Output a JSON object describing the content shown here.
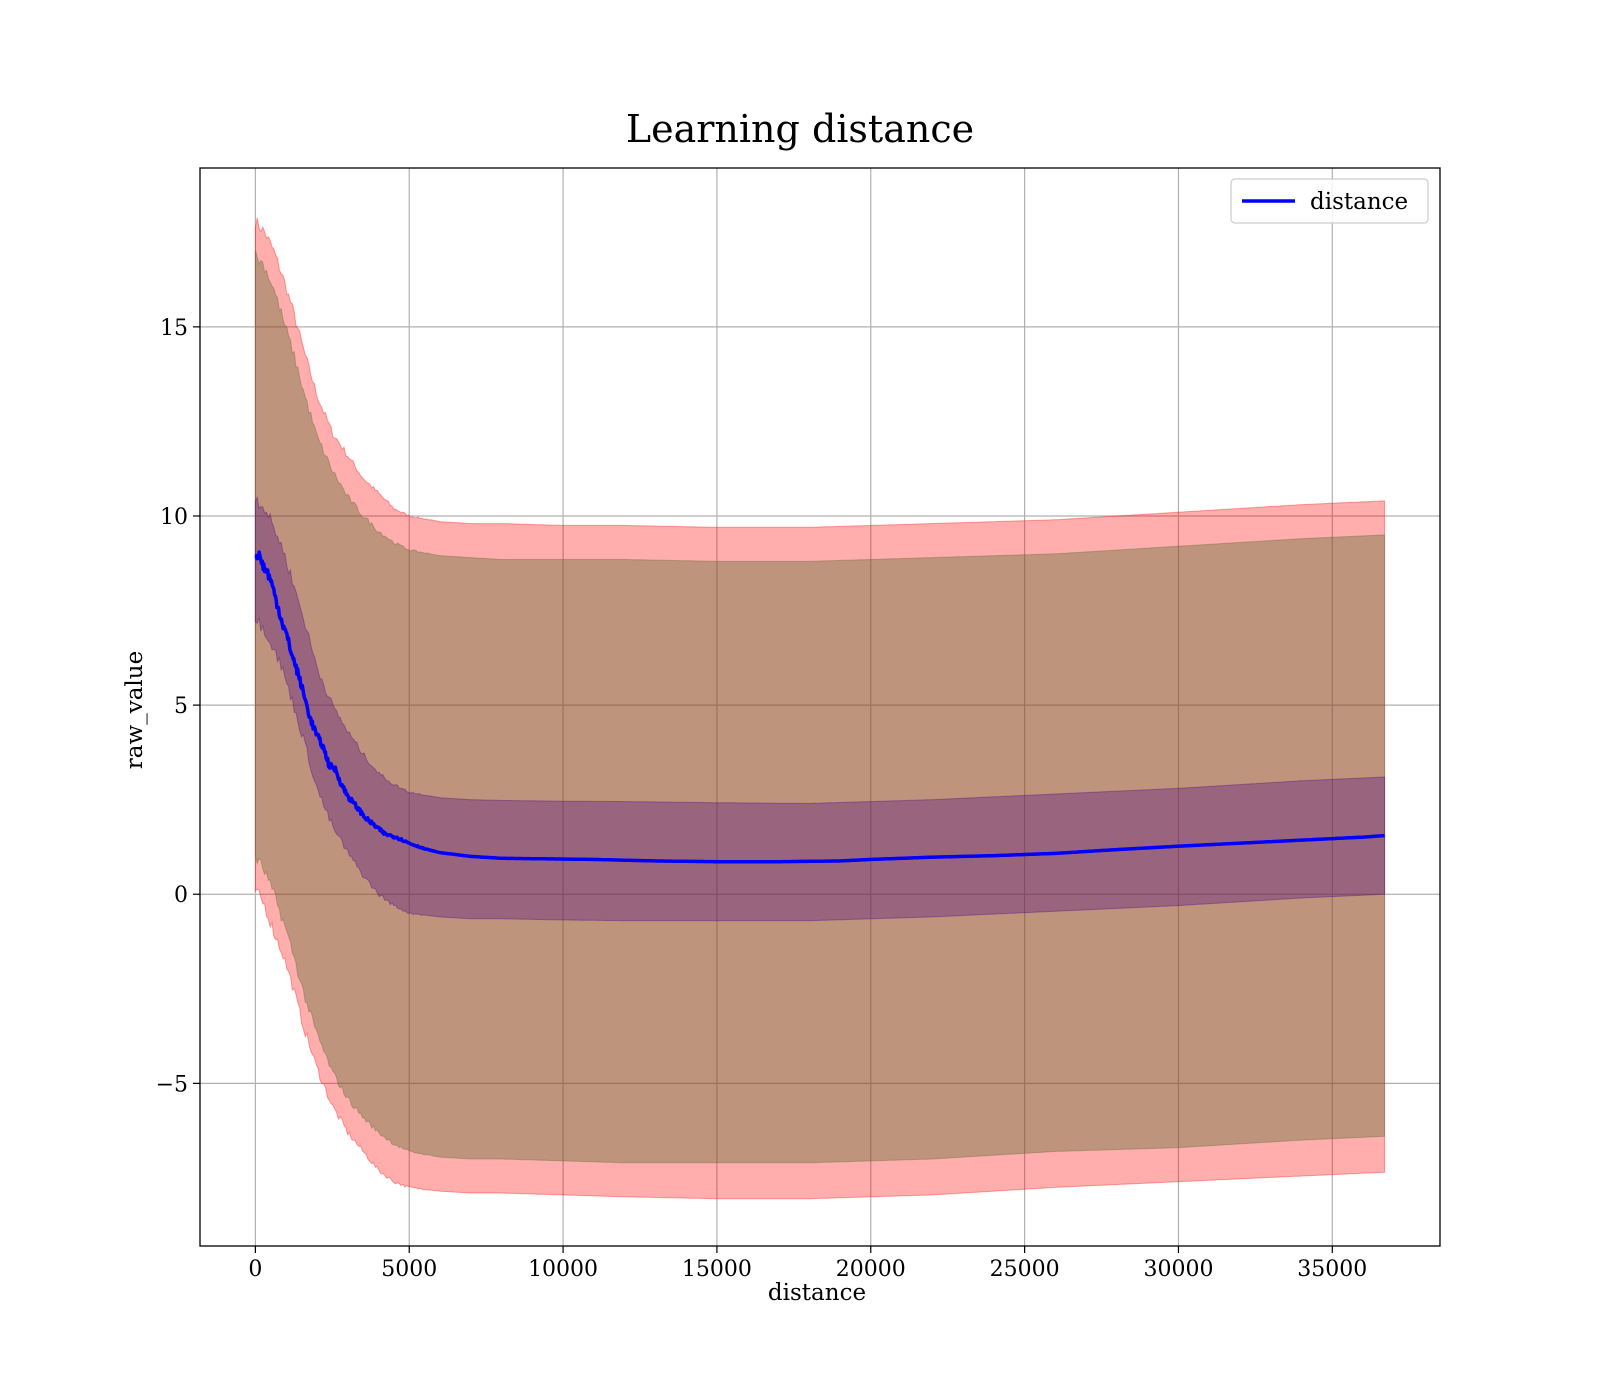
{
  "chart_data": {
    "type": "line",
    "title": "Learning distance",
    "xlabel": "distance",
    "ylabel": "raw_value",
    "xlim": [
      -1800,
      38500
    ],
    "ylim": [
      -9.3,
      19.2
    ],
    "xticks": [
      0,
      5000,
      10000,
      15000,
      20000,
      25000,
      30000,
      35000
    ],
    "yticks": [
      -5,
      0,
      5,
      10,
      15
    ],
    "ytick_labels": [
      "−5",
      "0",
      "5",
      "10",
      "15"
    ],
    "grid": true,
    "legend": {
      "placement": "top-right",
      "entries": [
        "distance"
      ]
    },
    "series": [
      {
        "name": "distance",
        "color": "#0000ff",
        "x": [
          0,
          100,
          200,
          300,
          400,
          500,
          600,
          700,
          800,
          900,
          1000,
          1200,
          1400,
          1600,
          1800,
          2000,
          2200,
          2400,
          2600,
          2800,
          3000,
          3300,
          3600,
          3900,
          4200,
          4600,
          5000,
          5500,
          6000,
          7000,
          8000,
          9000,
          10000,
          11000,
          12000,
          13000,
          14000,
          15000,
          16000,
          17000,
          18000,
          19000,
          20000,
          21000,
          22000,
          24000,
          26000,
          28000,
          30000,
          32000,
          34000,
          36000,
          36700
        ],
        "y": [
          8.9,
          9.0,
          8.8,
          8.6,
          8.5,
          8.3,
          8.0,
          7.7,
          7.4,
          7.1,
          6.9,
          6.3,
          5.8,
          5.2,
          4.6,
          4.2,
          3.9,
          3.4,
          3.3,
          2.9,
          2.6,
          2.3,
          2.0,
          1.8,
          1.6,
          1.5,
          1.35,
          1.2,
          1.1,
          1.0,
          0.95,
          0.94,
          0.93,
          0.92,
          0.9,
          0.88,
          0.87,
          0.86,
          0.86,
          0.86,
          0.87,
          0.88,
          0.92,
          0.95,
          0.98,
          1.02,
          1.08,
          1.18,
          1.27,
          1.35,
          1.43,
          1.51,
          1.55
        ]
      }
    ],
    "bands": [
      {
        "label": "outer",
        "color": "#ff0000",
        "opacity": 0.32,
        "x": [
          0,
          300,
          600,
          900,
          1200,
          1600,
          2000,
          2500,
          3000,
          3500,
          4000,
          4500,
          5000,
          6000,
          7000,
          8000,
          10000,
          12000,
          15000,
          18000,
          20000,
          22000,
          26000,
          30000,
          34000,
          36700
        ],
        "upper": [
          17.8,
          17.5,
          17.0,
          16.3,
          15.5,
          14.3,
          13.2,
          12.2,
          11.6,
          11.0,
          10.6,
          10.2,
          10.0,
          9.85,
          9.8,
          9.8,
          9.75,
          9.75,
          9.7,
          9.7,
          9.75,
          9.8,
          9.9,
          10.1,
          10.3,
          10.4
        ],
        "lower": [
          0.1,
          -0.3,
          -1.0,
          -1.6,
          -2.4,
          -3.6,
          -4.6,
          -5.6,
          -6.3,
          -6.8,
          -7.3,
          -7.6,
          -7.75,
          -7.85,
          -7.9,
          -7.9,
          -7.95,
          -8.0,
          -8.05,
          -8.05,
          -8.0,
          -7.95,
          -7.75,
          -7.6,
          -7.45,
          -7.35
        ]
      },
      {
        "label": "middle",
        "color": "#556b2f",
        "opacity": 0.38,
        "x": [
          0,
          300,
          600,
          900,
          1200,
          1600,
          2000,
          2500,
          3000,
          3500,
          4000,
          4500,
          5000,
          6000,
          7000,
          8000,
          10000,
          12000,
          15000,
          18000,
          20000,
          22000,
          26000,
          30000,
          34000,
          36700
        ],
        "upper": [
          16.9,
          16.6,
          16.0,
          15.2,
          14.4,
          13.2,
          12.1,
          11.2,
          10.5,
          10.0,
          9.6,
          9.3,
          9.1,
          8.95,
          8.9,
          8.85,
          8.85,
          8.85,
          8.8,
          8.8,
          8.85,
          8.9,
          9.0,
          9.2,
          9.4,
          9.5
        ],
        "lower": [
          1.0,
          0.6,
          0.0,
          -0.7,
          -1.5,
          -2.7,
          -3.7,
          -4.7,
          -5.4,
          -5.9,
          -6.3,
          -6.6,
          -6.8,
          -6.95,
          -7.0,
          -7.0,
          -7.05,
          -7.1,
          -7.1,
          -7.1,
          -7.05,
          -7.0,
          -6.8,
          -6.7,
          -6.5,
          -6.4
        ]
      },
      {
        "label": "inner",
        "color": "#4b0082",
        "opacity": 0.32,
        "x": [
          0,
          300,
          600,
          900,
          1200,
          1600,
          2000,
          2500,
          3000,
          3500,
          4000,
          4500,
          5000,
          6000,
          7000,
          8000,
          10000,
          12000,
          15000,
          18000,
          20000,
          22000,
          26000,
          30000,
          34000,
          36700
        ],
        "upper": [
          10.5,
          10.2,
          9.7,
          9.1,
          8.3,
          7.2,
          6.0,
          5.0,
          4.3,
          3.7,
          3.2,
          2.9,
          2.7,
          2.55,
          2.5,
          2.48,
          2.46,
          2.45,
          2.42,
          2.4,
          2.45,
          2.5,
          2.65,
          2.8,
          3.0,
          3.1
        ],
        "lower": [
          7.3,
          7.0,
          6.5,
          5.9,
          5.1,
          4.0,
          2.8,
          1.8,
          1.1,
          0.5,
          0.0,
          -0.3,
          -0.5,
          -0.6,
          -0.65,
          -0.65,
          -0.68,
          -0.7,
          -0.7,
          -0.7,
          -0.65,
          -0.6,
          -0.45,
          -0.3,
          -0.1,
          0.0
        ]
      }
    ]
  }
}
